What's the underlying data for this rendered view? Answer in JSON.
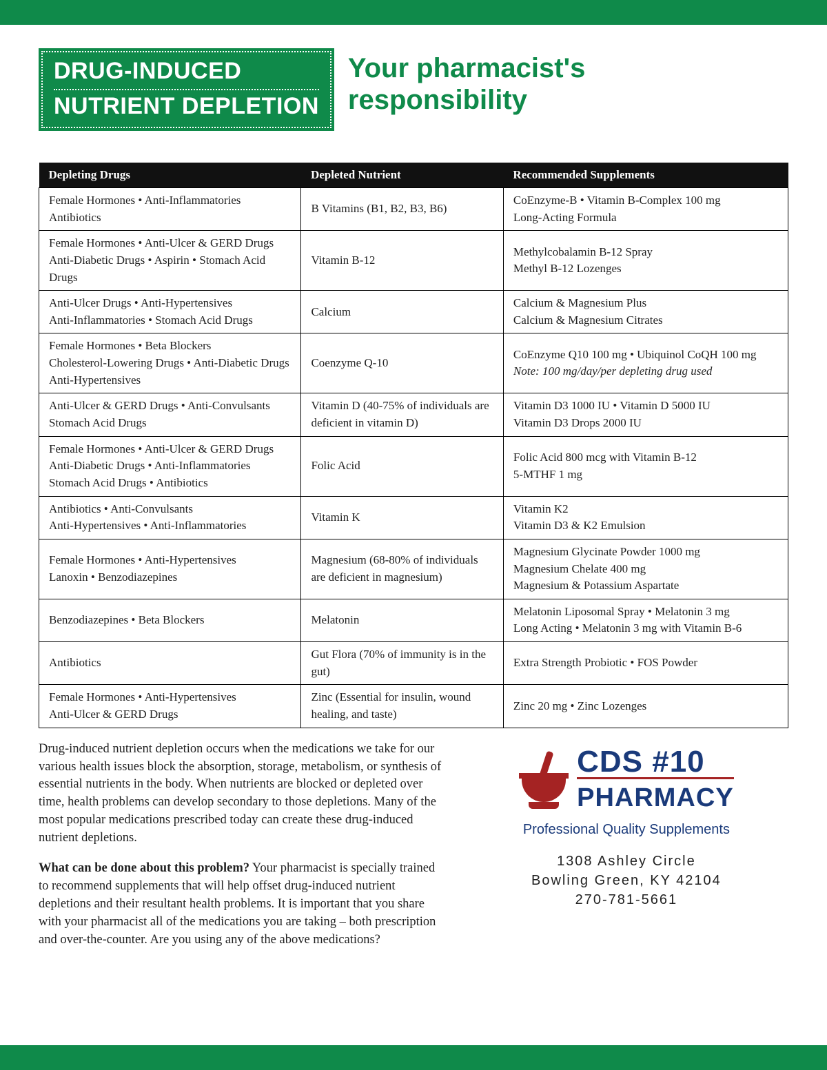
{
  "colors": {
    "brand_green": "#0f8a4a",
    "header_black": "#111111",
    "logo_blue": "#1a3a7a",
    "logo_red": "#a52323",
    "text": "#222222",
    "background": "#ffffff",
    "border": "#000000"
  },
  "header": {
    "title_line1": "DRUG-INDUCED",
    "title_line2": "NUTRIENT DEPLETION",
    "subtitle_line1": "Your pharmacist's",
    "subtitle_line2": "responsibility"
  },
  "table": {
    "columns": [
      "Depleting Drugs",
      "Depleted Nutrient",
      "Recommended Supplements"
    ],
    "rows": [
      {
        "drugs": "Female Hormones • Anti-Inflammatories\nAntibiotics",
        "nutrient": "B Vitamins (B1, B2, B3, B6)",
        "supplements": "CoEnzyme-B • Vitamin B-Complex 100 mg\nLong-Acting Formula"
      },
      {
        "drugs": "Female Hormones • Anti-Ulcer & GERD Drugs\nAnti-Diabetic Drugs • Aspirin • Stomach Acid Drugs",
        "nutrient": "Vitamin B-12",
        "supplements": "Methylcobalamin B-12 Spray\nMethyl B-12 Lozenges"
      },
      {
        "drugs": "Anti-Ulcer Drugs • Anti-Hypertensives\nAnti-Inflammatories • Stomach Acid Drugs",
        "nutrient": "Calcium",
        "supplements": "Calcium & Magnesium Plus\nCalcium & Magnesium Citrates"
      },
      {
        "drugs": "Female Hormones • Beta Blockers\nCholesterol-Lowering Drugs • Anti-Diabetic Drugs\nAnti-Hypertensives",
        "nutrient": "Coenzyme Q-10",
        "supplements": "CoEnzyme Q10 100 mg • Ubiquinol CoQH 100 mg",
        "supplements_note": "Note: 100 mg/day/per depleting drug used"
      },
      {
        "drugs": "Anti-Ulcer & GERD Drugs • Anti-Convulsants\nStomach Acid Drugs",
        "nutrient": "Vitamin D (40-75% of individuals are deficient in vitamin D)",
        "supplements": "Vitamin D3 1000 IU • Vitamin D 5000 IU\nVitamin D3 Drops 2000 IU"
      },
      {
        "drugs": "Female Hormones • Anti-Ulcer & GERD Drugs\nAnti-Diabetic Drugs • Anti-Inflammatories\nStomach Acid Drugs • Antibiotics",
        "nutrient": "Folic Acid",
        "supplements": "Folic Acid 800 mcg with Vitamin B-12\n5-MTHF 1 mg"
      },
      {
        "drugs": "Antibiotics • Anti-Convulsants\nAnti-Hypertensives • Anti-Inflammatories",
        "nutrient": "Vitamin K",
        "supplements": "Vitamin K2\nVitamin D3 & K2 Emulsion"
      },
      {
        "drugs": "Female Hormones • Anti-Hypertensives\nLanoxin • Benzodiazepines",
        "nutrient": "Magnesium (68-80% of individuals are deficient in magnesium)",
        "supplements": "Magnesium Glycinate Powder 1000 mg\nMagnesium Chelate 400 mg\nMagnesium & Potassium Aspartate"
      },
      {
        "drugs": "Benzodiazepines • Beta Blockers",
        "nutrient": "Melatonin",
        "supplements": "Melatonin Liposomal Spray • Melatonin 3 mg\nLong Acting • Melatonin 3 mg with Vitamin B-6"
      },
      {
        "drugs": "Antibiotics",
        "nutrient": "Gut Flora (70% of immunity is in the gut)",
        "supplements": "Extra Strength Probiotic • FOS Powder"
      },
      {
        "drugs": "Female Hormones • Anti-Hypertensives\nAnti-Ulcer & GERD Drugs",
        "nutrient": "Zinc (Essential for insulin, wound healing, and taste)",
        "supplements": "Zinc 20 mg • Zinc Lozenges"
      }
    ]
  },
  "paragraphs": {
    "intro": "Drug-induced nutrient depletion occurs when the medications we take for our various health issues block the absorption, storage, metabolism, or synthesis of essential nutrients in the body. When nutrients are blocked or depleted over time, health problems can develop secondary to those depletions. Many of the most popular medications prescribed today can create these drug-induced nutrient depletions.",
    "question": "What can be done about this problem?",
    "answer": " Your pharmacist is specially trained to recommend supplements that will help offset drug-induced nutrient depletions and their resultant health problems. It is important that you share with your pharmacist all of the medications you are taking – both prescription and over-the-counter. Are you using any of the above medications?"
  },
  "brand": {
    "logo_main": "CDS #10",
    "logo_sub": "PHARMACY",
    "tagline": "Professional Quality Supplements",
    "address_line1": "1308 Ashley Circle",
    "address_line2": "Bowling Green, KY 42104",
    "phone": "270-781-5661"
  }
}
